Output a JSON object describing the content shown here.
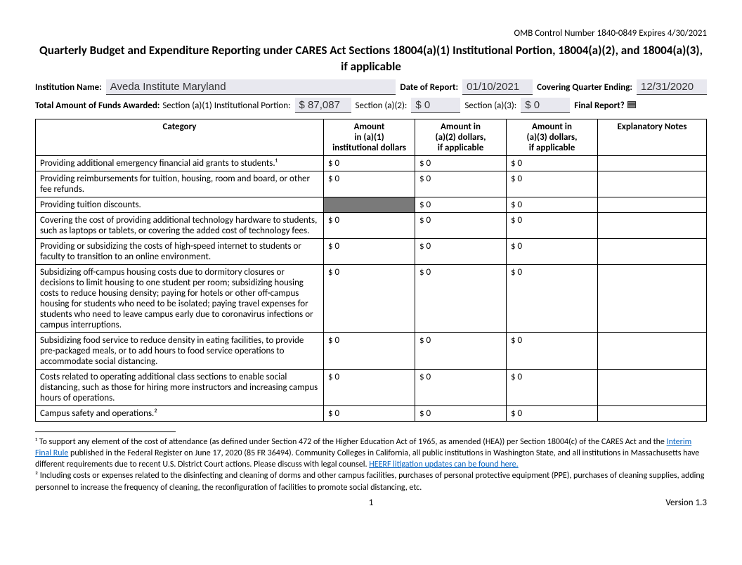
{
  "omb": "OMB Control Number 1840-0849 Expires 4/30/2021",
  "title": "Quarterly Budget and Expenditure Reporting under CARES Act Sections 18004(a)(1) Institutional Portion, 18004(a)(2), and 18004(a)(3), if applicable",
  "meta": {
    "inst_label": "Institution Name:",
    "inst_value": "Aveda Institute Maryland",
    "date_label": "Date of Report:",
    "date_value": "01/10/2021",
    "qtr_label": "Covering Quarter Ending:",
    "qtr_value": "12/31/2020",
    "total_label": "Total Amount of Funds Awarded:",
    "sec1_label": "Section (a)(1) Institutional Portion:",
    "sec1_value": "$ 87,087",
    "sec2_label": "Section (a)(2):",
    "sec2_value": "$ 0",
    "sec3_label": "Section (a)(3):",
    "sec3_value": "$ 0",
    "final_label": "Final Report?"
  },
  "table": {
    "headers": {
      "cat": "Category",
      "a1": "Amount\nin (a)(1)\ninstitutional dollars",
      "a2": "Amount in\n(a)(2) dollars,\nif applicable",
      "a3": "Amount in\n(a)(3) dollars,\nif applicable",
      "notes": "Explanatory Notes"
    },
    "rows": [
      {
        "cat": "Providing additional emergency financial aid grants to students.¹",
        "a1": "$ 0",
        "a2": "$ 0",
        "a3": "$ 0",
        "notes": "",
        "grey_a1": false
      },
      {
        "cat": "Providing reimbursements for tuition, housing, room and board, or other fee refunds.",
        "a1": "$ 0",
        "a2": "$ 0",
        "a3": "$ 0",
        "notes": "",
        "grey_a1": false
      },
      {
        "cat": "Providing tuition discounts.",
        "a1": "",
        "a2": "$ 0",
        "a3": "$ 0",
        "notes": "",
        "grey_a1": true
      },
      {
        "cat": "Covering the cost of providing additional technology hardware to students, such as laptops or tablets, or covering the added cost of technology fees.",
        "a1": "$ 0",
        "a2": "$ 0",
        "a3": "$ 0",
        "notes": "",
        "grey_a1": false
      },
      {
        "cat": "Providing or subsidizing the costs of high-speed internet to students or faculty to transition to an online environment.",
        "a1": "$ 0",
        "a2": "$ 0",
        "a3": "$ 0",
        "notes": "",
        "grey_a1": false
      },
      {
        "cat": "Subsidizing off-campus housing costs due to dormitory closures or decisions to limit housing to one student per room; subsidizing housing costs to reduce housing density; paying for hotels or other off-campus housing for students who need to be isolated; paying travel expenses for students who need to leave campus early due to coronavirus infections or campus interruptions.",
        "a1": "$ 0",
        "a2": "$ 0",
        "a3": "$ 0",
        "notes": "",
        "grey_a1": false
      },
      {
        "cat": "Subsidizing food service to reduce density in eating facilities, to provide pre-packaged meals, or to add hours to food service operations to accommodate social distancing.",
        "a1": "$ 0",
        "a2": "$ 0",
        "a3": "$ 0",
        "notes": "",
        "grey_a1": false
      },
      {
        "cat": "Costs related to operating additional class sections to enable social distancing, such as those for hiring more instructors and increasing campus hours of operations.",
        "a1": "$ 0",
        "a2": "$ 0",
        "a3": "$ 0",
        "notes": "",
        "grey_a1": false
      },
      {
        "cat": "Campus safety and operations.²",
        "a1": "$ 0",
        "a2": "$ 0",
        "a3": "$ 0",
        "notes": "",
        "grey_a1": false
      }
    ]
  },
  "footnotes": {
    "f1_pre": "¹ To support any element of the cost of attendance (as defined under Section 472 of the Higher Education Act of 1965, as amended (HEA)) per Section 18004(c) of the CARES Act and the ",
    "f1_link1": "Interim Final Rule",
    "f1_mid": " published in the Federal Register on June 17, 2020 (85 FR 36494). Community Colleges in California, all public institutions in Washington State, and all institutions in Massachusetts have different requirements due to recent U.S. District Court actions. Please discuss with legal counsel. ",
    "f1_link2": "HEERF litigation updates can be found here.",
    "f2": "² Including costs or expenses related to the disinfecting and cleaning of dorms and other campus facilities, purchases of personal protective equipment (PPE), purchases of cleaning supplies, adding personnel to increase the frequency of cleaning, the reconfiguration of facilities to promote social distancing, etc."
  },
  "footer": {
    "page": "1",
    "version": "Version 1.3"
  },
  "style": {
    "fill_bg": "#e8e8ef",
    "grey_cell": "#7a7a7a",
    "link_color": "#0563c1"
  }
}
